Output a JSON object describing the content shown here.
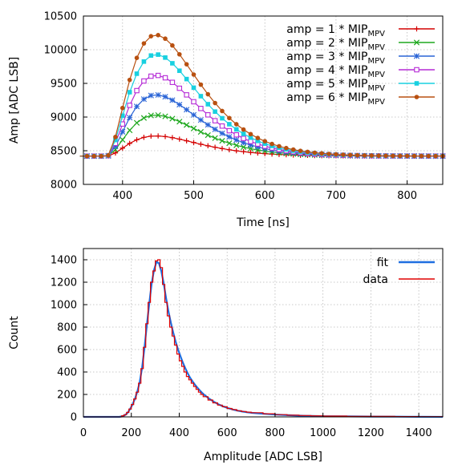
{
  "chart_data": [
    {
      "type": "line",
      "title": "",
      "xlabel": "Time [ns]",
      "ylabel": "Amp [ADC LSB]",
      "xlim": [
        345,
        850
      ],
      "ylim": [
        8000,
        10500
      ],
      "xticks": [
        "400",
        "500",
        "600",
        "700",
        "800"
      ],
      "yticks": [
        "8000",
        "8500",
        "9000",
        "9500",
        "10000",
        "10500"
      ],
      "grid": true,
      "legend_position": "top-right",
      "legend_prefix": "amp = ",
      "legend_mid": " * MIP",
      "legend_sub": "MPV",
      "pulse_model": {
        "baseline": 8420,
        "onset_ns": 378,
        "peak_ns": 447,
        "sample_step_ns": 10
      },
      "series": [
        {
          "name": "1",
          "color": "#d40000",
          "marker": "plus",
          "amplitude": 300
        },
        {
          "name": "2",
          "color": "#1ea81e",
          "marker": "cross",
          "amplitude": 610
        },
        {
          "name": "3",
          "color": "#2a64d6",
          "marker": "star",
          "amplitude": 910
        },
        {
          "name": "4",
          "color": "#b52ad6",
          "marker": "open-square",
          "amplitude": 1200
        },
        {
          "name": "5",
          "color": "#18d0e0",
          "marker": "filled-square",
          "amplitude": 1510
        },
        {
          "name": "6",
          "color": "#b85010",
          "marker": "filled-circle",
          "amplitude": 1800
        }
      ]
    },
    {
      "type": "histogram",
      "title": "",
      "xlabel": "Amplitude [ADC LSB]",
      "ylabel": "Count",
      "xlim": [
        0,
        1500
      ],
      "ylim": [
        0,
        1500
      ],
      "xticks": [
        "0",
        "200",
        "400",
        "600",
        "800",
        "1000",
        "1200",
        "1400"
      ],
      "yticks": [
        "0",
        "200",
        "400",
        "600",
        "800",
        "1000",
        "1200",
        "1400"
      ],
      "grid": true,
      "legend_position": "top-right",
      "series": [
        {
          "name": "fit",
          "color": "#1e6ee0",
          "style": "smooth-line"
        },
        {
          "name": "data",
          "color": "#e00000",
          "style": "step"
        }
      ],
      "bin_width": 10,
      "x": [
        160,
        170,
        180,
        190,
        200,
        210,
        220,
        230,
        240,
        250,
        260,
        270,
        280,
        290,
        300,
        310,
        320,
        330,
        340,
        350,
        360,
        370,
        380,
        390,
        400,
        410,
        420,
        430,
        440,
        450,
        460,
        470,
        480,
        490,
        500,
        520,
        540,
        560,
        580,
        600,
        620,
        640,
        660,
        680,
        700,
        750,
        800,
        850,
        900,
        950,
        1000,
        1100,
        1200,
        1300,
        1400
      ],
      "data": [
        10,
        20,
        40,
        70,
        110,
        160,
        220,
        300,
        430,
        620,
        830,
        1020,
        1200,
        1300,
        1390,
        1400,
        1330,
        1180,
        1020,
        900,
        800,
        720,
        640,
        560,
        500,
        450,
        400,
        360,
        330,
        300,
        270,
        245,
        220,
        200,
        180,
        150,
        125,
        105,
        90,
        75,
        65,
        55,
        48,
        42,
        37,
        28,
        20,
        15,
        12,
        9,
        7,
        5,
        4,
        3,
        2
      ],
      "fit": [
        8,
        18,
        38,
        70,
        110,
        160,
        225,
        310,
        440,
        620,
        820,
        1010,
        1190,
        1310,
        1380,
        1370,
        1300,
        1190,
        1060,
        940,
        840,
        750,
        670,
        600,
        540,
        485,
        435,
        390,
        350,
        318,
        288,
        262,
        238,
        216,
        196,
        162,
        134,
        111,
        92,
        77,
        65,
        55,
        47,
        41,
        36,
        27,
        20,
        15,
        11,
        8,
        6,
        4,
        3,
        2,
        1
      ]
    }
  ]
}
